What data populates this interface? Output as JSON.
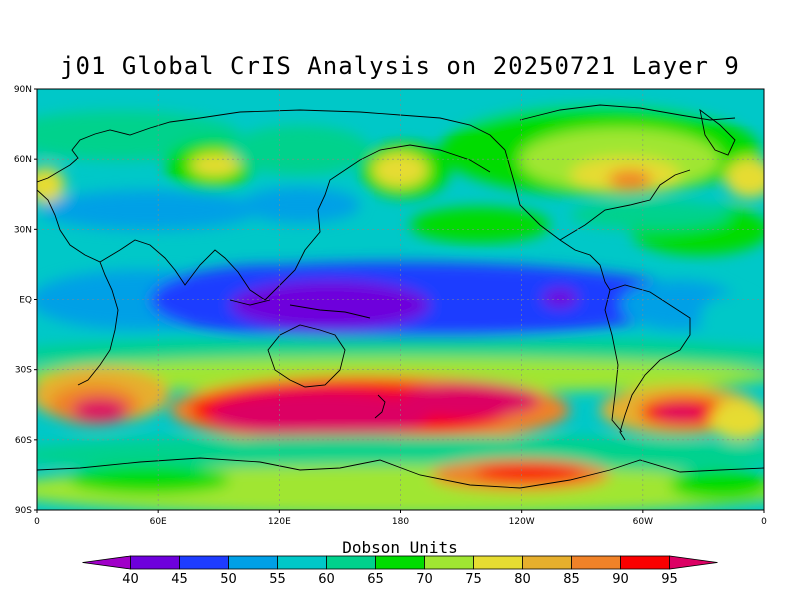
{
  "title": "j01 Global CrIS Analysis on 20250721 Layer 9",
  "map": {
    "projection": "equirectangular",
    "lon_range": [
      0,
      360
    ],
    "lat_range": [
      -90,
      90
    ],
    "lat_ticks": [
      {
        "value": 90,
        "label": "90N"
      },
      {
        "value": 60,
        "label": "60N"
      },
      {
        "value": 30,
        "label": "30N"
      },
      {
        "value": 0,
        "label": "EQ"
      },
      {
        "value": -30,
        "label": "30S"
      },
      {
        "value": -60,
        "label": "60S"
      },
      {
        "value": -90,
        "label": "90S"
      }
    ],
    "lon_ticks": [
      {
        "value": 0,
        "label": "0"
      },
      {
        "value": 60,
        "label": "60E"
      },
      {
        "value": 120,
        "label": "120E"
      },
      {
        "value": 180,
        "label": "180"
      },
      {
        "value": 240,
        "label": "120W"
      },
      {
        "value": 300,
        "label": "60W"
      },
      {
        "value": 360,
        "label": "0"
      }
    ],
    "grid": true
  },
  "colorbar": {
    "units_label": "Dobson Units",
    "levels": [
      40,
      45,
      50,
      55,
      60,
      65,
      70,
      75,
      80,
      85,
      90,
      95
    ],
    "colors": [
      "#a000c8",
      "#6e00dc",
      "#1e3cff",
      "#00a0e6",
      "#00c8c8",
      "#00d28c",
      "#00dc00",
      "#a0e632",
      "#e6dc32",
      "#e6af2d",
      "#f08228",
      "#fa0000",
      "#dc0064"
    ],
    "extend": "both"
  }
}
